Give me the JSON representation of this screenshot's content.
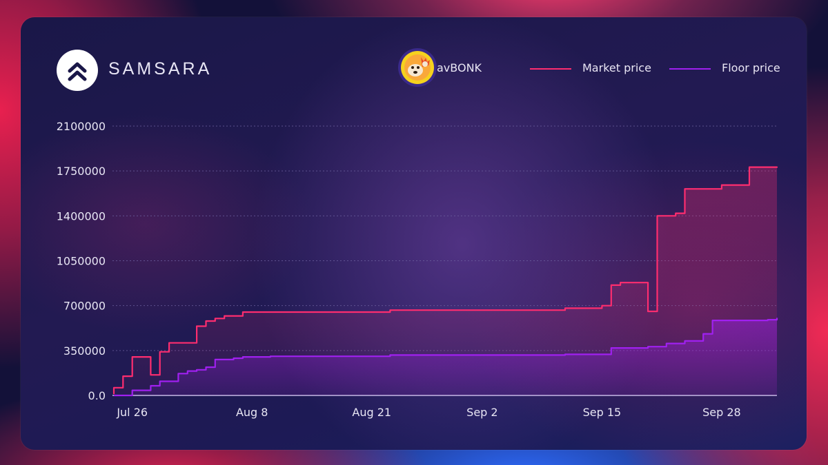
{
  "brand": {
    "name": "SAMSARA",
    "logo_icon": "double-chevron-up-icon"
  },
  "token": {
    "label": "avBONK",
    "icon": "bonk-dog-icon"
  },
  "colors": {
    "market": "#ff2d6f",
    "floor": "#a020f0",
    "grid": "#6b5f9e",
    "axis": "#c9c3ea"
  },
  "chart_data": {
    "type": "line",
    "title": "",
    "xlabel": "",
    "ylabel": "",
    "ylim": [
      0,
      2100000
    ],
    "xlim": [
      "2024-07-24",
      "2024-10-04"
    ],
    "y_ticks": [
      "0.0",
      "350000",
      "700000",
      "1050000",
      "1400000",
      "1750000",
      "2100000"
    ],
    "x_ticks": [
      {
        "label": "Jul 26",
        "date": "2024-07-26"
      },
      {
        "label": "Aug 8",
        "date": "2024-08-08"
      },
      {
        "label": "Aug 21",
        "date": "2024-08-21"
      },
      {
        "label": "Sep 2",
        "date": "2024-09-02"
      },
      {
        "label": "Sep 15",
        "date": "2024-09-15"
      },
      {
        "label": "Sep 28",
        "date": "2024-09-28"
      }
    ],
    "grid": true,
    "legend_position": "top-right",
    "series": [
      {
        "name": "Market price",
        "step": true,
        "points": [
          [
            "2024-07-24",
            10000
          ],
          [
            "2024-07-24",
            60000
          ],
          [
            "2024-07-25",
            60000
          ],
          [
            "2024-07-25",
            150000
          ],
          [
            "2024-07-26",
            250000
          ],
          [
            "2024-07-26",
            300000
          ],
          [
            "2024-07-28",
            300000
          ],
          [
            "2024-07-28",
            160000
          ],
          [
            "2024-07-29",
            160000
          ],
          [
            "2024-07-29",
            340000
          ],
          [
            "2024-07-30",
            340000
          ],
          [
            "2024-07-30",
            410000
          ],
          [
            "2024-08-02",
            410000
          ],
          [
            "2024-08-02",
            540000
          ],
          [
            "2024-08-03",
            580000
          ],
          [
            "2024-08-04",
            600000
          ],
          [
            "2024-08-05",
            620000
          ],
          [
            "2024-08-07",
            640000
          ],
          [
            "2024-08-07",
            650000
          ],
          [
            "2024-08-23",
            650000
          ],
          [
            "2024-08-23",
            665000
          ],
          [
            "2024-09-11",
            665000
          ],
          [
            "2024-09-11",
            680000
          ],
          [
            "2024-09-15",
            685000
          ],
          [
            "2024-09-15",
            700000
          ],
          [
            "2024-09-16",
            700000
          ],
          [
            "2024-09-16",
            860000
          ],
          [
            "2024-09-17",
            880000
          ],
          [
            "2024-09-20",
            880000
          ],
          [
            "2024-09-20",
            655000
          ],
          [
            "2024-09-21",
            655000
          ],
          [
            "2024-09-21",
            1400000
          ],
          [
            "2024-09-23",
            1400000
          ],
          [
            "2024-09-23",
            1420000
          ],
          [
            "2024-09-24",
            1420000
          ],
          [
            "2024-09-24",
            1610000
          ],
          [
            "2024-09-28",
            1610000
          ],
          [
            "2024-09-28",
            1640000
          ],
          [
            "2024-10-01",
            1640000
          ],
          [
            "2024-10-01",
            1780000
          ],
          [
            "2024-10-04",
            1785000
          ]
        ]
      },
      {
        "name": "Floor price",
        "step": true,
        "points": [
          [
            "2024-07-24",
            0
          ],
          [
            "2024-07-26",
            40000
          ],
          [
            "2024-07-28",
            75000
          ],
          [
            "2024-07-29",
            110000
          ],
          [
            "2024-07-31",
            170000
          ],
          [
            "2024-08-01",
            190000
          ],
          [
            "2024-08-02",
            200000
          ],
          [
            "2024-08-03",
            220000
          ],
          [
            "2024-08-04",
            280000
          ],
          [
            "2024-08-06",
            290000
          ],
          [
            "2024-08-07",
            300000
          ],
          [
            "2024-08-10",
            305000
          ],
          [
            "2024-08-23",
            315000
          ],
          [
            "2024-09-11",
            320000
          ],
          [
            "2024-09-16",
            325000
          ],
          [
            "2024-09-16",
            370000
          ],
          [
            "2024-09-20",
            380000
          ],
          [
            "2024-09-22",
            405000
          ],
          [
            "2024-09-24",
            425000
          ],
          [
            "2024-09-26",
            430000
          ],
          [
            "2024-09-26",
            480000
          ],
          [
            "2024-09-27",
            540000
          ],
          [
            "2024-09-27",
            585000
          ],
          [
            "2024-10-03",
            590000
          ],
          [
            "2024-10-04",
            605000
          ]
        ]
      }
    ]
  }
}
